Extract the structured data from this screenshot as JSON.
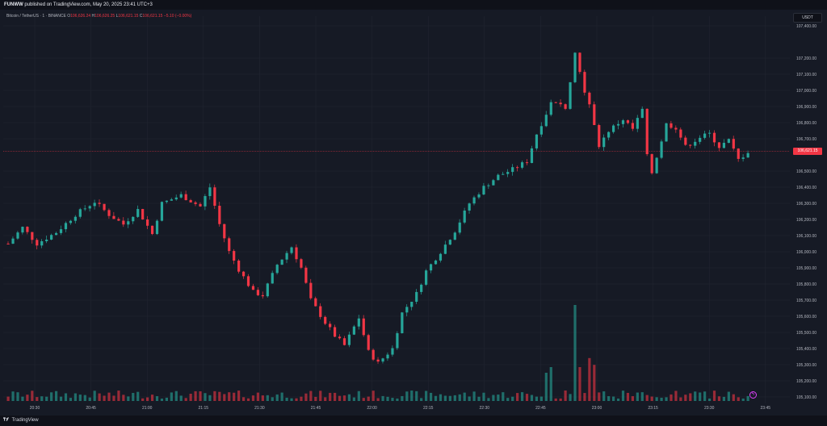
{
  "header": {
    "author": "FUNWW",
    "published_text": "published on TradingView.com, May 20, 2025 23:41 UTC+3"
  },
  "legend": {
    "symbol": "Bitcoin / TetherUS · 1 · BINANCE",
    "o_label": "O",
    "o": "106,626.24",
    "h_label": "H",
    "h": "106,626.25",
    "l_label": "L",
    "l": "106,621.15",
    "c_label": "C",
    "c": "106,621.15",
    "change": "−5.10 (−0.00%)"
  },
  "currency": "USDT",
  "last_price": "106,621.15",
  "footer": {
    "brand": "TradingView"
  },
  "colors": {
    "up": "#26a69a",
    "down": "#f23645",
    "background": "#161a25",
    "grid": "#232733"
  },
  "chart_data": {
    "type": "candlestick",
    "y_ticks": [
      "107,400.00",
      "107,200.00",
      "107,100.00",
      "107,000.00",
      "106,900.00",
      "106,800.00",
      "106,700.00",
      "106,500.00",
      "106,400.00",
      "106,300.00",
      "106,200.00",
      "106,100.00",
      "106,000.00",
      "105,900.00",
      "105,800.00",
      "105,700.00",
      "105,600.00",
      "105,500.00",
      "105,400.00",
      "105,300.00",
      "105,200.00",
      "105,100.00"
    ],
    "y_tick_values": [
      107400,
      107200,
      107100,
      107000,
      106900,
      106800,
      106700,
      106500,
      106400,
      106300,
      106200,
      106100,
      106000,
      105900,
      105800,
      105700,
      105600,
      105500,
      105400,
      105300,
      105200,
      105100
    ],
    "x_ticks": [
      "20:30",
      "20:45",
      "21:00",
      "21:15",
      "21:30",
      "21:45",
      "22:00",
      "22:15",
      "22:30",
      "22:45",
      "23:00",
      "23:15",
      "23:30",
      "23:45"
    ],
    "ylim": [
      105060,
      107460
    ],
    "last_close": 106621.15,
    "path": [
      [
        0,
        106050
      ],
      [
        3,
        106150
      ],
      [
        6,
        106050
      ],
      [
        10,
        106120
      ],
      [
        14,
        106230
      ],
      [
        18,
        106310
      ],
      [
        21,
        106230
      ],
      [
        24,
        106170
      ],
      [
        27,
        106260
      ],
      [
        30,
        106110
      ],
      [
        32,
        106300
      ],
      [
        36,
        106350
      ],
      [
        40,
        106280
      ],
      [
        42,
        106400
      ],
      [
        44,
        106170
      ],
      [
        46,
        106000
      ],
      [
        48,
        105890
      ],
      [
        51,
        105750
      ],
      [
        53,
        105730
      ],
      [
        56,
        105920
      ],
      [
        59,
        106030
      ],
      [
        61,
        105900
      ],
      [
        63,
        105700
      ],
      [
        66,
        105560
      ],
      [
        68,
        105480
      ],
      [
        70,
        105420
      ],
      [
        73,
        105590
      ],
      [
        75,
        105380
      ],
      [
        77,
        105310
      ],
      [
        80,
        105400
      ],
      [
        82,
        105620
      ],
      [
        85,
        105740
      ],
      [
        87,
        105880
      ],
      [
        90,
        106000
      ],
      [
        93,
        106130
      ],
      [
        96,
        106300
      ],
      [
        99,
        106400
      ],
      [
        102,
        106470
      ],
      [
        105,
        106510
      ],
      [
        108,
        106560
      ],
      [
        110,
        106730
      ],
      [
        113,
        106920
      ],
      [
        116,
        106900
      ],
      [
        118,
        107230
      ],
      [
        120,
        107000
      ],
      [
        121,
        106900
      ],
      [
        123,
        106660
      ],
      [
        125,
        106750
      ],
      [
        128,
        106820
      ],
      [
        130,
        106760
      ],
      [
        132,
        106880
      ],
      [
        133,
        106590
      ],
      [
        134,
        106490
      ],
      [
        137,
        106790
      ],
      [
        139,
        106770
      ],
      [
        141,
        106650
      ],
      [
        144,
        106710
      ],
      [
        146,
        106730
      ],
      [
        148,
        106650
      ],
      [
        150,
        106690
      ],
      [
        152,
        106570
      ],
      [
        154,
        106620
      ]
    ],
    "volume_spikes": {
      "118": 0.85,
      "119": 0.3,
      "121": 0.38,
      "122": 0.32,
      "112": 0.25,
      "113": 0.3
    }
  }
}
